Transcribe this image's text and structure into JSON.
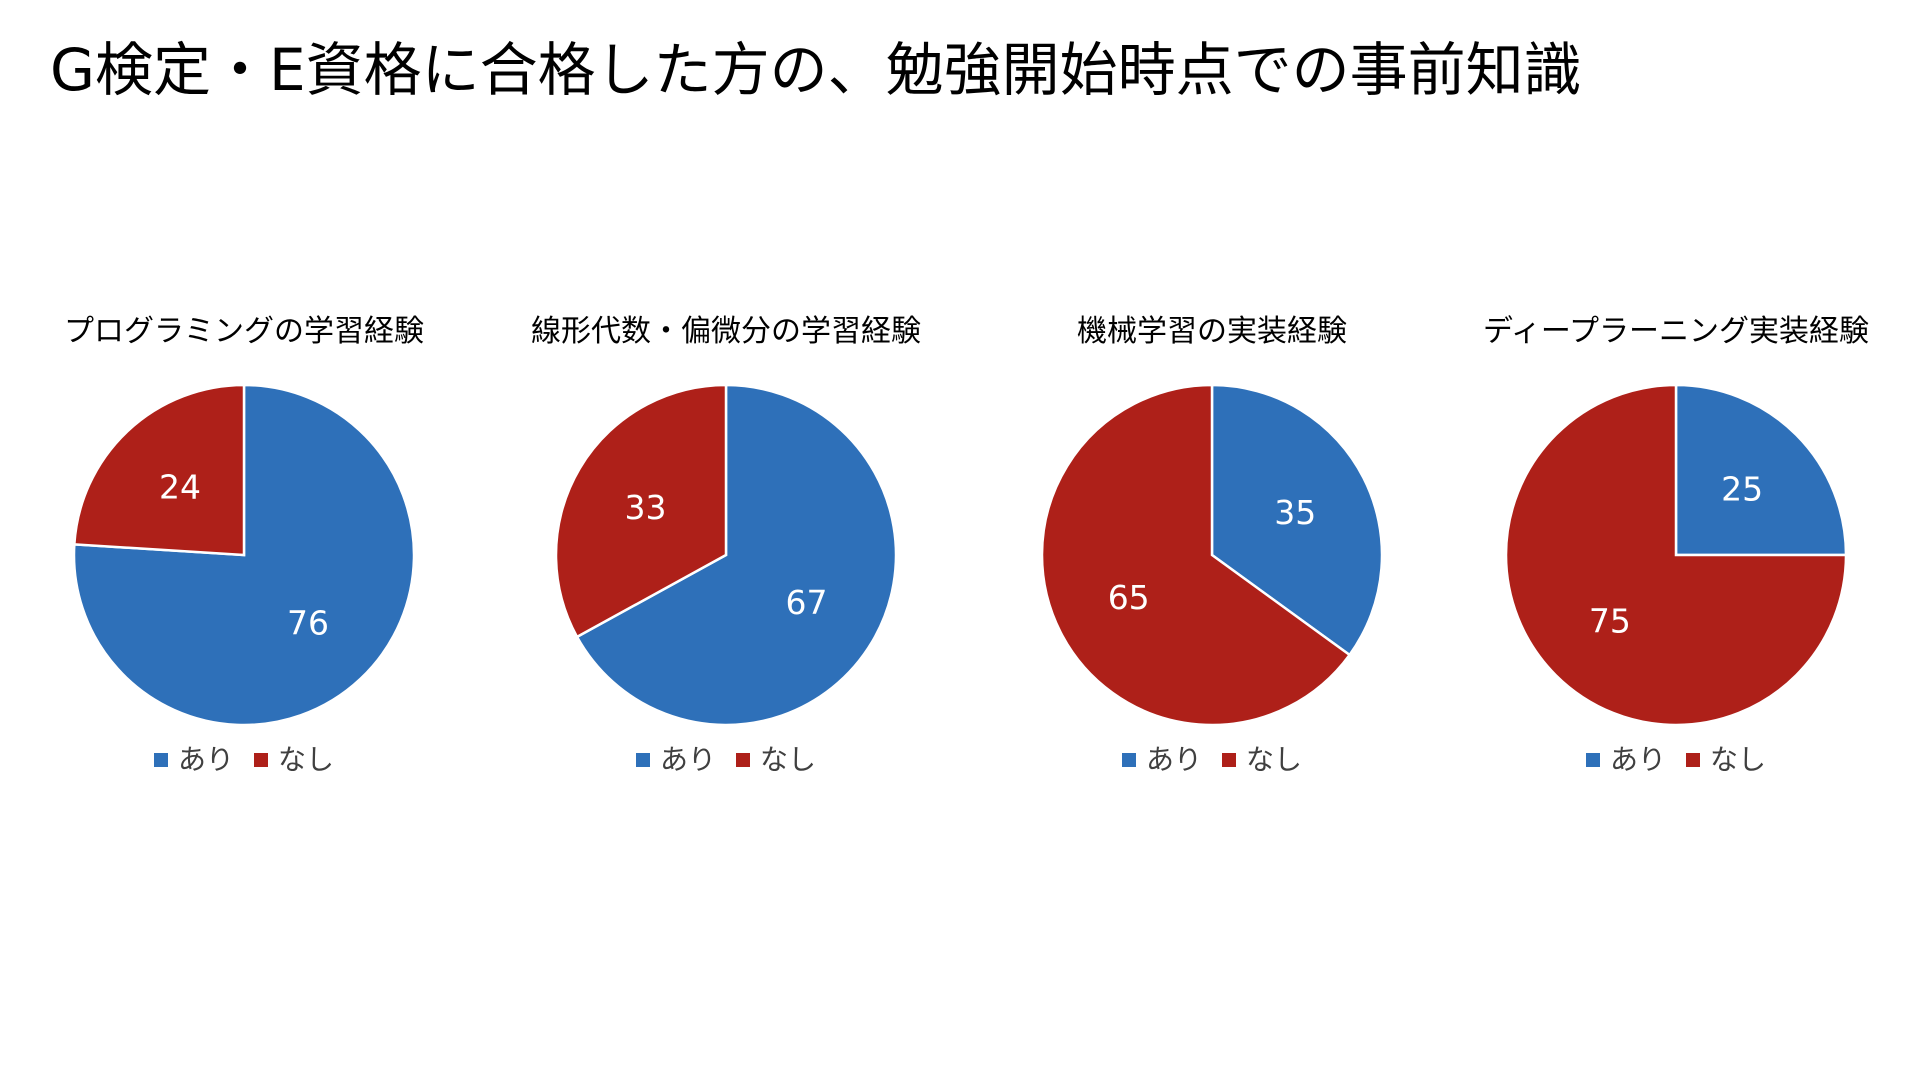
{
  "slide": {
    "title": "G検定・E資格に合格した方の、勉強開始時点での事前知識"
  },
  "colors": {
    "yes": "#2E70B9",
    "no": "#AE2019",
    "slice_border": "#ffffff",
    "label_text": "#ffffff",
    "legend_text": "#404040"
  },
  "legend": {
    "yes": "あり",
    "no": "なし"
  },
  "chart_data": [
    {
      "type": "pie",
      "title": "プログラミングの学習経験",
      "categories": [
        "あり",
        "なし"
      ],
      "values": [
        76,
        24
      ],
      "data_labels": [
        "76",
        "24"
      ],
      "legend_position": "bottom"
    },
    {
      "type": "pie",
      "title": "線形代数・偏微分の学習経験",
      "categories": [
        "あり",
        "なし"
      ],
      "values": [
        67,
        33
      ],
      "data_labels": [
        "67",
        "33"
      ],
      "legend_position": "bottom"
    },
    {
      "type": "pie",
      "title": "機械学習の実装経験",
      "categories": [
        "あり",
        "なし"
      ],
      "values": [
        35,
        65
      ],
      "data_labels": [
        "35",
        "65"
      ],
      "legend_position": "bottom"
    },
    {
      "type": "pie",
      "title": "ディープラーニング実装経験",
      "categories": [
        "あり",
        "なし"
      ],
      "values": [
        25,
        75
      ],
      "data_labels": [
        "25",
        "75"
      ],
      "legend_position": "bottom"
    }
  ]
}
